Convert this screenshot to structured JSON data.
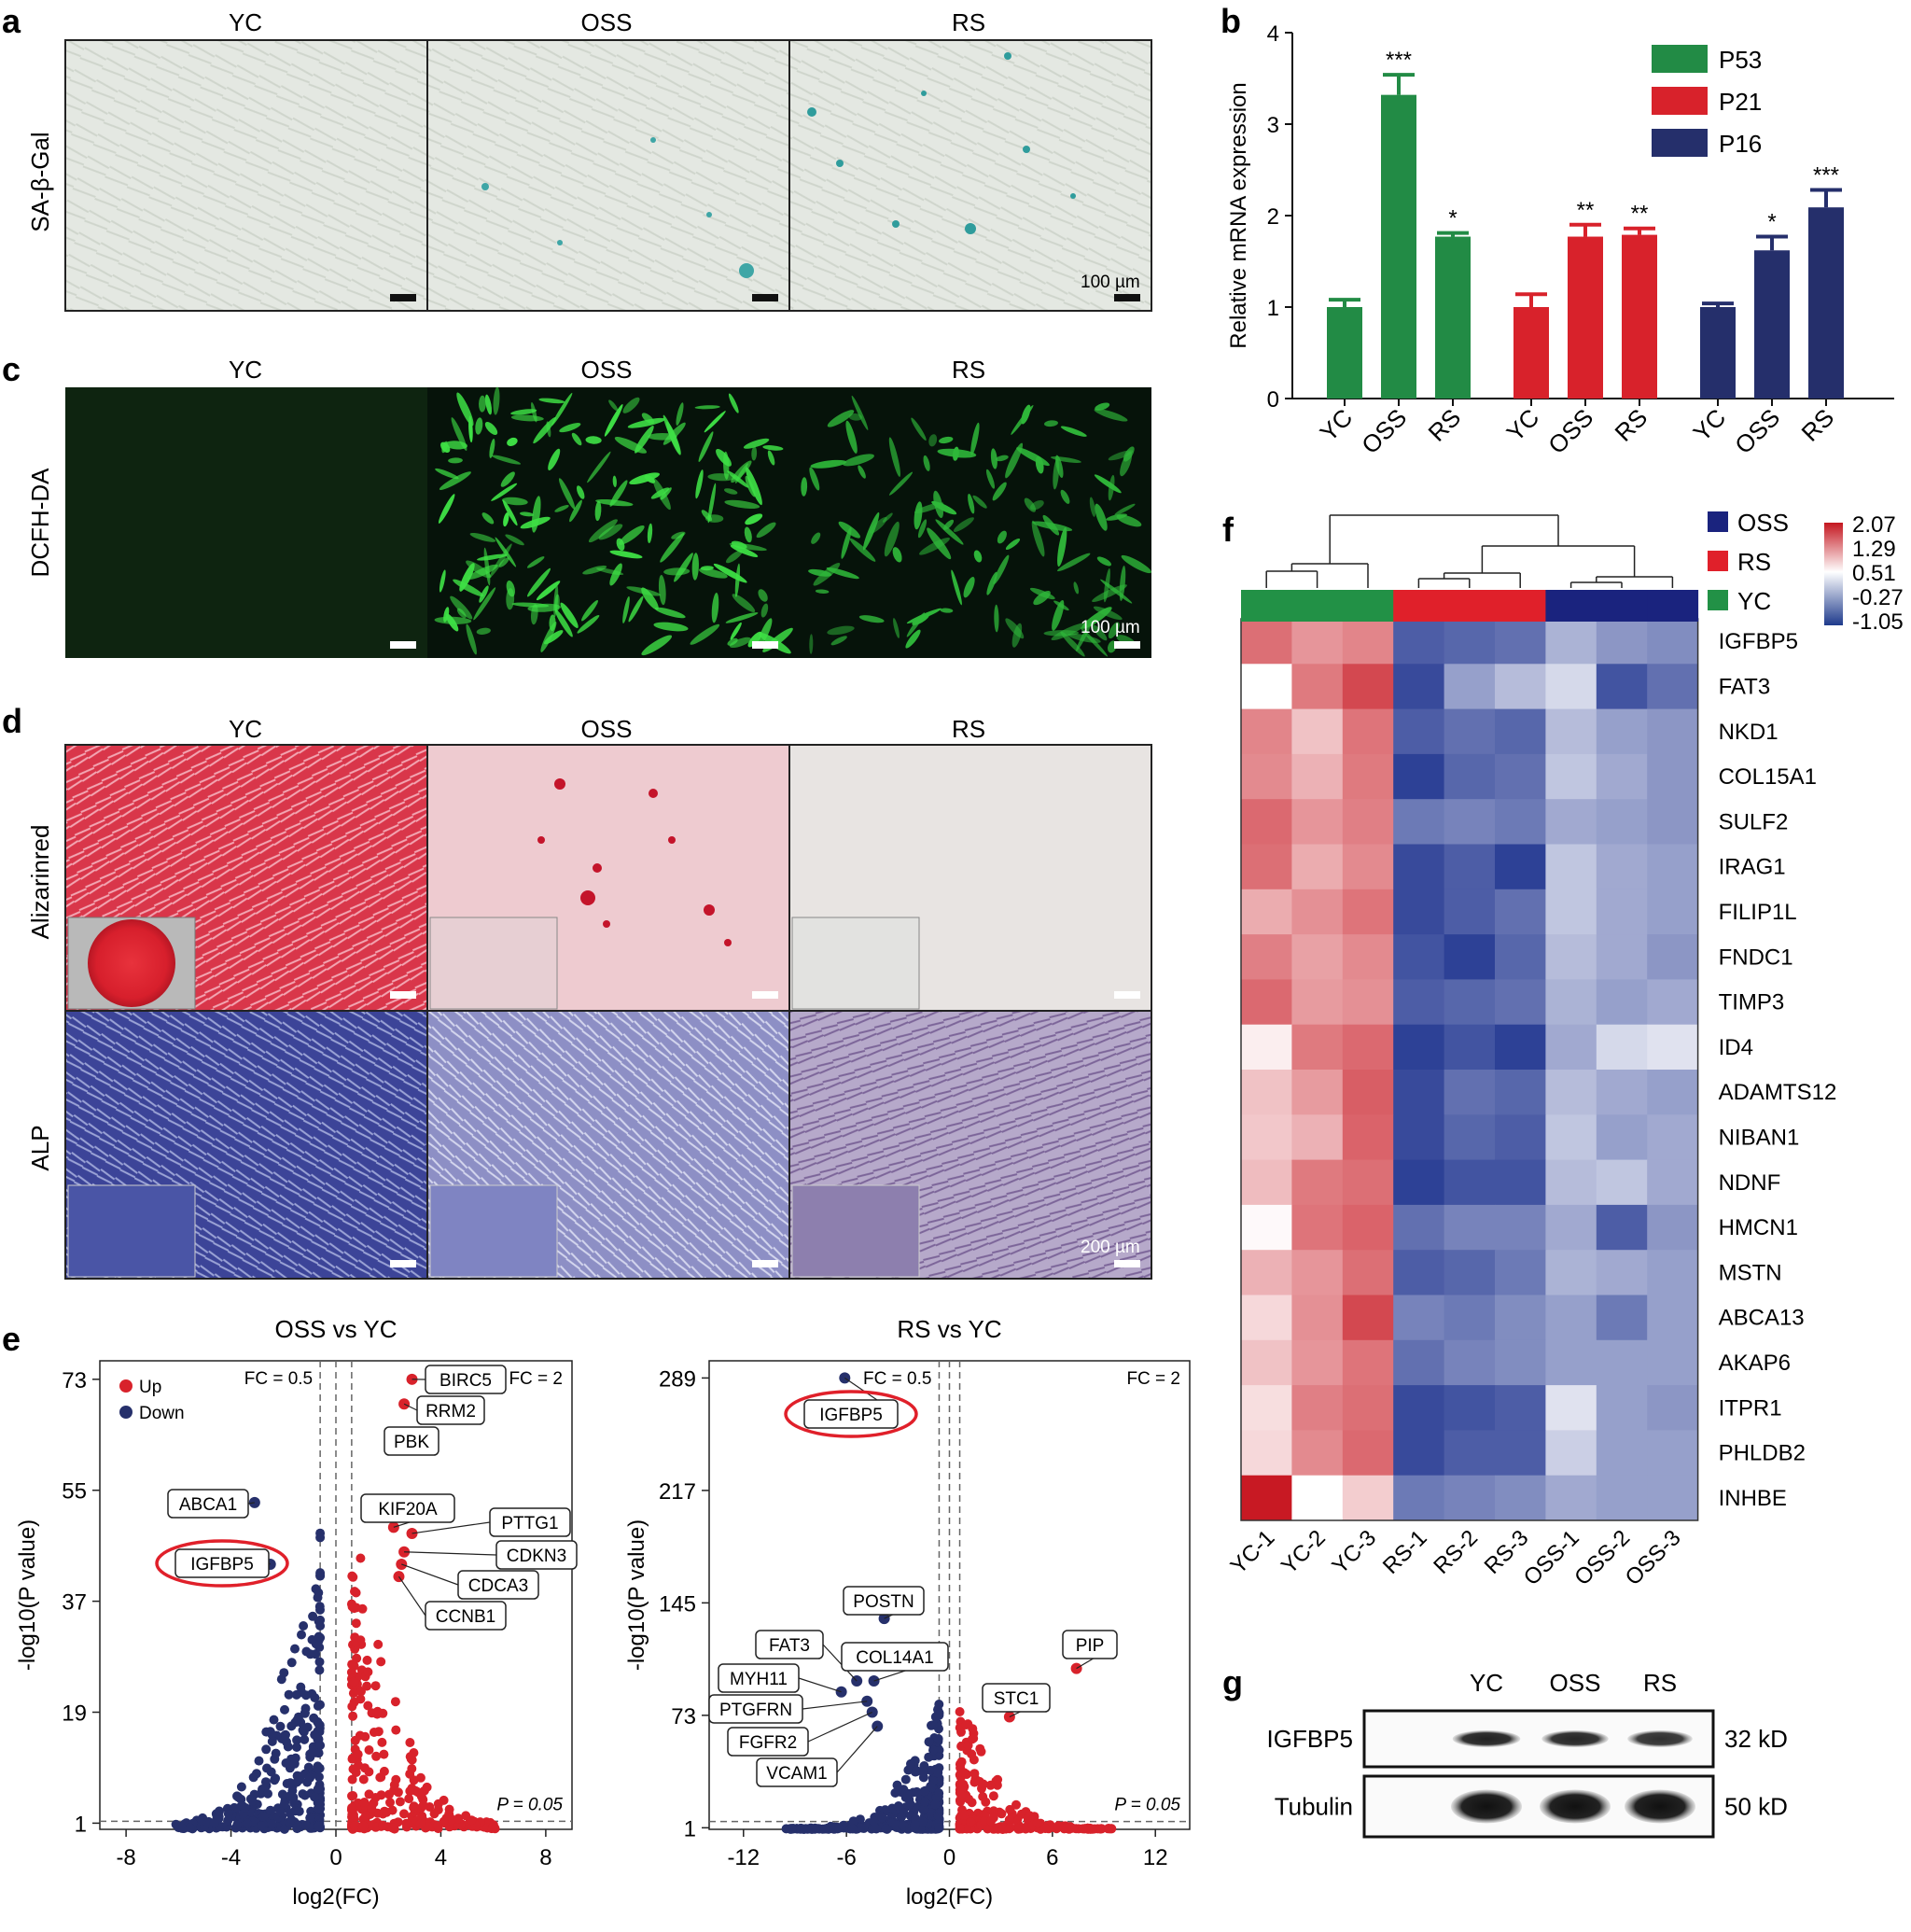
{
  "panel_letters": {
    "a": "a",
    "b": "b",
    "c": "c",
    "d": "d",
    "e": "e",
    "f": "f",
    "g": "g"
  },
  "groups": [
    "YC",
    "OSS",
    "RS"
  ],
  "panel_a": {
    "row_label": "SA-β-Gal",
    "scale_label": "100 µm"
  },
  "panel_c": {
    "row_label": "DCFH-DA",
    "scale_label": "100 µm"
  },
  "panel_d": {
    "row_labels": [
      "Alizarinred",
      "ALP"
    ],
    "scale_label": "200 µm"
  },
  "chart_data": [
    {
      "id": "b",
      "type": "bar",
      "ylabel": "Relative mRNA expression",
      "ylim": [
        0,
        4
      ],
      "yticks": [
        0,
        1,
        2,
        3,
        4
      ],
      "categories": [
        "YC",
        "OSS",
        "RS"
      ],
      "legend_position": "top-right",
      "series": [
        {
          "name": "P53",
          "color": "#228b45",
          "values": [
            1.0,
            3.32,
            1.77
          ],
          "errors": [
            0.08,
            0.22,
            0.04
          ],
          "significance": [
            "",
            "***",
            "*"
          ]
        },
        {
          "name": "P21",
          "color": "#d8222b",
          "values": [
            1.0,
            1.77,
            1.79
          ],
          "errors": [
            0.14,
            0.13,
            0.07
          ],
          "significance": [
            "",
            "**",
            "**"
          ]
        },
        {
          "name": "P16",
          "color": "#252f6b",
          "values": [
            1.0,
            1.62,
            2.09
          ],
          "errors": [
            0.04,
            0.15,
            0.19
          ],
          "significance": [
            "",
            "*",
            "***"
          ]
        }
      ]
    },
    {
      "id": "e1",
      "type": "scatter",
      "title": "OSS vs YC",
      "xlabel": "log2(FC)",
      "ylabel": "-log10(P value)",
      "xlim": [
        -9,
        9
      ],
      "ylim": [
        1,
        73
      ],
      "xticks": [
        -8,
        -4,
        0,
        4,
        8
      ],
      "yticks": [
        1,
        19,
        37,
        55,
        73
      ],
      "legend": [
        {
          "name": "Up",
          "color": "#d8222b"
        },
        {
          "name": "Down",
          "color": "#26306b"
        }
      ],
      "threshold_labels": {
        "fc_low": "FC = 0.5",
        "fc_high": "FC = 2",
        "p": "P = 0.05"
      },
      "labeled_points": [
        {
          "gene": "BIRC5",
          "x": 2.9,
          "y": 73,
          "dir": "up"
        },
        {
          "gene": "RRM2",
          "x": 2.6,
          "y": 69,
          "dir": "up"
        },
        {
          "gene": "PBK",
          "x": 2.7,
          "y": 62,
          "dir": "up"
        },
        {
          "gene": "KIF20A",
          "x": 2.2,
          "y": 49,
          "dir": "up"
        },
        {
          "gene": "PTTG1",
          "x": 2.9,
          "y": 48,
          "dir": "up"
        },
        {
          "gene": "CDKN3",
          "x": 2.6,
          "y": 45,
          "dir": "up"
        },
        {
          "gene": "CDCA3",
          "x": 2.5,
          "y": 43,
          "dir": "up"
        },
        {
          "gene": "CCNB1",
          "x": 2.4,
          "y": 41,
          "dir": "up"
        },
        {
          "gene": "ABCA1",
          "x": -3.1,
          "y": 53,
          "dir": "down"
        },
        {
          "gene": "IGFBP5",
          "x": -2.5,
          "y": 43,
          "dir": "down",
          "highlight": true
        }
      ]
    },
    {
      "id": "e2",
      "type": "scatter",
      "title": "RS vs YC",
      "xlabel": "log2(FC)",
      "ylabel": "-log10(P value)",
      "xlim": [
        -14,
        14
      ],
      "ylim": [
        1,
        289
      ],
      "xticks": [
        -12,
        -6,
        0,
        6,
        12
      ],
      "yticks": [
        1,
        73,
        145,
        217,
        289
      ],
      "threshold_labels": {
        "fc_low": "FC = 0.5",
        "fc_high": "FC = 2",
        "p": "P = 0.05"
      },
      "labeled_points": [
        {
          "gene": "IGFBP5",
          "x": -6.1,
          "y": 289,
          "dir": "down",
          "highlight": true
        },
        {
          "gene": "POSTN",
          "x": -3.8,
          "y": 135,
          "dir": "down"
        },
        {
          "gene": "FAT3",
          "x": -5.4,
          "y": 95,
          "dir": "down"
        },
        {
          "gene": "COL14A1",
          "x": -4.4,
          "y": 95,
          "dir": "down"
        },
        {
          "gene": "MYH11",
          "x": -6.3,
          "y": 88,
          "dir": "down"
        },
        {
          "gene": "PTGFRN",
          "x": -4.8,
          "y": 82,
          "dir": "down"
        },
        {
          "gene": "FGFR2",
          "x": -4.5,
          "y": 75,
          "dir": "down"
        },
        {
          "gene": "VCAM1",
          "x": -4.2,
          "y": 66,
          "dir": "down"
        },
        {
          "gene": "PIP",
          "x": 7.4,
          "y": 103,
          "dir": "up"
        },
        {
          "gene": "STC1",
          "x": 3.5,
          "y": 72,
          "dir": "up"
        }
      ]
    },
    {
      "id": "f",
      "type": "heatmap",
      "columns": [
        "YC-1",
        "YC-2",
        "YC-3",
        "RS-1",
        "RS-2",
        "RS-3",
        "OSS-1",
        "OSS-2",
        "OSS-3"
      ],
      "column_groups": [
        "YC",
        "YC",
        "YC",
        "RS",
        "RS",
        "RS",
        "OSS",
        "OSS",
        "OSS"
      ],
      "group_colors": {
        "OSS": "#1a237e",
        "RS": "#e0202a",
        "YC": "#229146"
      },
      "group_legend": [
        "OSS",
        "RS",
        "YC"
      ],
      "scale_ticks": [
        2.07,
        1.29,
        0.51,
        -0.27,
        -1.05
      ],
      "range": [
        -1.05,
        2.07
      ],
      "rows": [
        "IGFBP5",
        "FAT3",
        "NKD1",
        "COL15A1",
        "SULF2",
        "IRAG1",
        "FILIP1L",
        "FNDC1",
        "TIMP3",
        "ID4",
        "ADAMTS12",
        "NIBAN1",
        "NDNF",
        "HMCN1",
        "MSTN",
        "ABCA13",
        "AKAP6",
        "ITPR1",
        "PHLDB2",
        "INHBE"
      ],
      "values": [
        [
          1.3,
          0.95,
          1.1,
          -0.85,
          -0.8,
          -0.75,
          -0.4,
          -0.55,
          -0.6
        ],
        [
          0.0,
          1.2,
          1.65,
          -0.95,
          -0.5,
          -0.35,
          -0.2,
          -0.9,
          -0.75
        ],
        [
          1.1,
          0.55,
          1.25,
          -0.85,
          -0.75,
          -0.8,
          -0.35,
          -0.5,
          -0.55
        ],
        [
          1.05,
          0.7,
          1.2,
          -1.0,
          -0.8,
          -0.75,
          -0.3,
          -0.45,
          -0.55
        ],
        [
          1.35,
          0.95,
          1.15,
          -0.7,
          -0.65,
          -0.7,
          -0.45,
          -0.5,
          -0.55
        ],
        [
          1.3,
          0.75,
          1.05,
          -0.95,
          -0.85,
          -1.0,
          -0.3,
          -0.45,
          -0.5
        ],
        [
          0.75,
          1.0,
          1.25,
          -0.95,
          -0.85,
          -0.75,
          -0.3,
          -0.45,
          -0.5
        ],
        [
          1.15,
          0.85,
          1.05,
          -0.9,
          -1.0,
          -0.8,
          -0.35,
          -0.45,
          -0.55
        ],
        [
          1.35,
          0.9,
          1.0,
          -0.85,
          -0.8,
          -0.75,
          -0.4,
          -0.5,
          -0.45
        ],
        [
          0.15,
          1.2,
          1.35,
          -1.0,
          -0.9,
          -1.0,
          -0.45,
          -0.2,
          -0.15
        ],
        [
          0.55,
          0.9,
          1.45,
          -0.95,
          -0.75,
          -0.8,
          -0.35,
          -0.45,
          -0.5
        ],
        [
          0.5,
          0.7,
          1.4,
          -0.95,
          -0.8,
          -0.85,
          -0.3,
          -0.5,
          -0.45
        ],
        [
          0.6,
          1.2,
          1.3,
          -1.0,
          -0.9,
          -0.9,
          -0.35,
          -0.3,
          -0.45
        ],
        [
          0.05,
          1.25,
          1.4,
          -0.75,
          -0.65,
          -0.65,
          -0.45,
          -0.85,
          -0.55
        ],
        [
          0.7,
          0.95,
          1.3,
          -0.85,
          -0.8,
          -0.7,
          -0.4,
          -0.45,
          -0.5
        ],
        [
          0.35,
          1.0,
          1.65,
          -0.65,
          -0.7,
          -0.6,
          -0.5,
          -0.7,
          -0.5
        ],
        [
          0.55,
          0.95,
          1.25,
          -0.75,
          -0.65,
          -0.6,
          -0.5,
          -0.5,
          -0.5
        ],
        [
          0.3,
          1.15,
          1.3,
          -0.95,
          -0.9,
          -0.85,
          -0.15,
          -0.5,
          -0.55
        ],
        [
          0.35,
          1.05,
          1.35,
          -0.95,
          -0.85,
          -0.85,
          -0.25,
          -0.5,
          -0.5
        ],
        [
          2.07,
          0.0,
          0.45,
          -0.7,
          -0.65,
          -0.6,
          -0.45,
          -0.5,
          -0.5
        ]
      ]
    }
  ],
  "panel_g": {
    "columns": [
      "YC",
      "OSS",
      "RS"
    ],
    "rows": [
      {
        "protein": "IGFBP5",
        "size": "32 kD",
        "intensities": [
          0.85,
          0.8,
          0.72
        ]
      },
      {
        "protein": "Tubulin",
        "size": "50 kD",
        "intensities": [
          1.0,
          1.0,
          1.0
        ]
      }
    ]
  }
}
